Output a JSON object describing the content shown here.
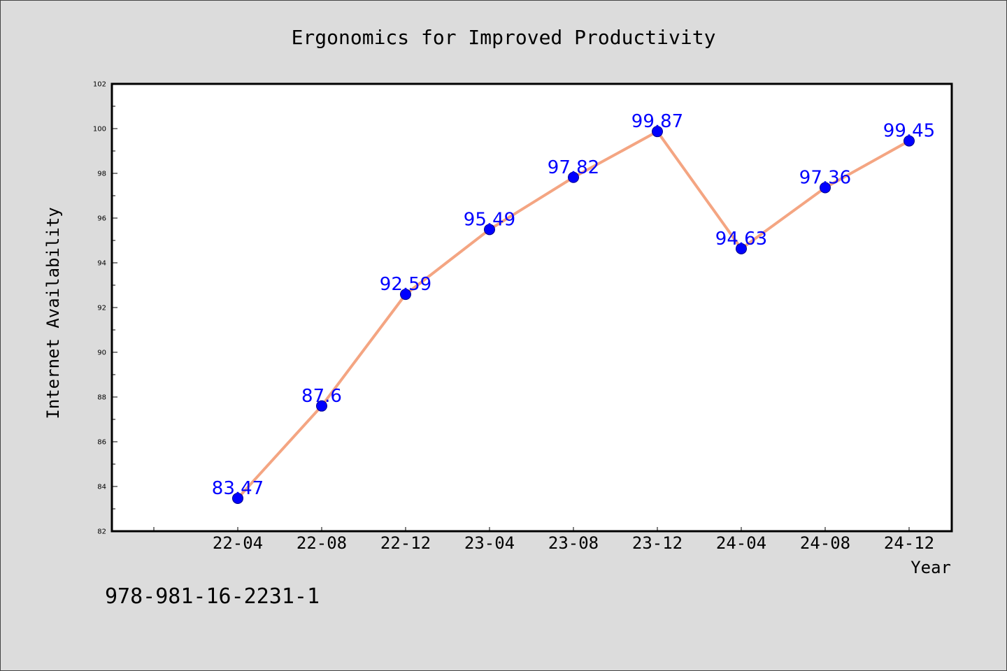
{
  "chart_data": {
    "type": "line",
    "title": "Ergonomics for Improved Productivity",
    "xlabel": "Year",
    "ylabel": "Internet Availability",
    "categories": [
      "22-04",
      "22-08",
      "22-12",
      "23-04",
      "23-08",
      "23-12",
      "24-04",
      "24-08",
      "24-12"
    ],
    "values": [
      83.47,
      87.6,
      92.59,
      95.49,
      97.82,
      99.87,
      94.63,
      97.36,
      99.45
    ],
    "value_labels": [
      "83.47",
      "87.6",
      "92.59",
      "95.49",
      "97.82",
      "99.87",
      "94.63",
      "97.36",
      "99.45"
    ],
    "ylim": [
      82,
      102
    ],
    "yticks": [
      82,
      84,
      86,
      88,
      90,
      92,
      94,
      96,
      98,
      100,
      102
    ],
    "ytick_labels": [
      "82",
      "84",
      "86",
      "88",
      "90",
      "92",
      "94",
      "96",
      "98",
      "100",
      "102"
    ],
    "grid": false,
    "legend": "none",
    "line_color": "#f4a582",
    "marker_color": "#0000ff",
    "label_color": "#0000ff"
  },
  "footer": {
    "code": "978-981-16-2231-1"
  }
}
